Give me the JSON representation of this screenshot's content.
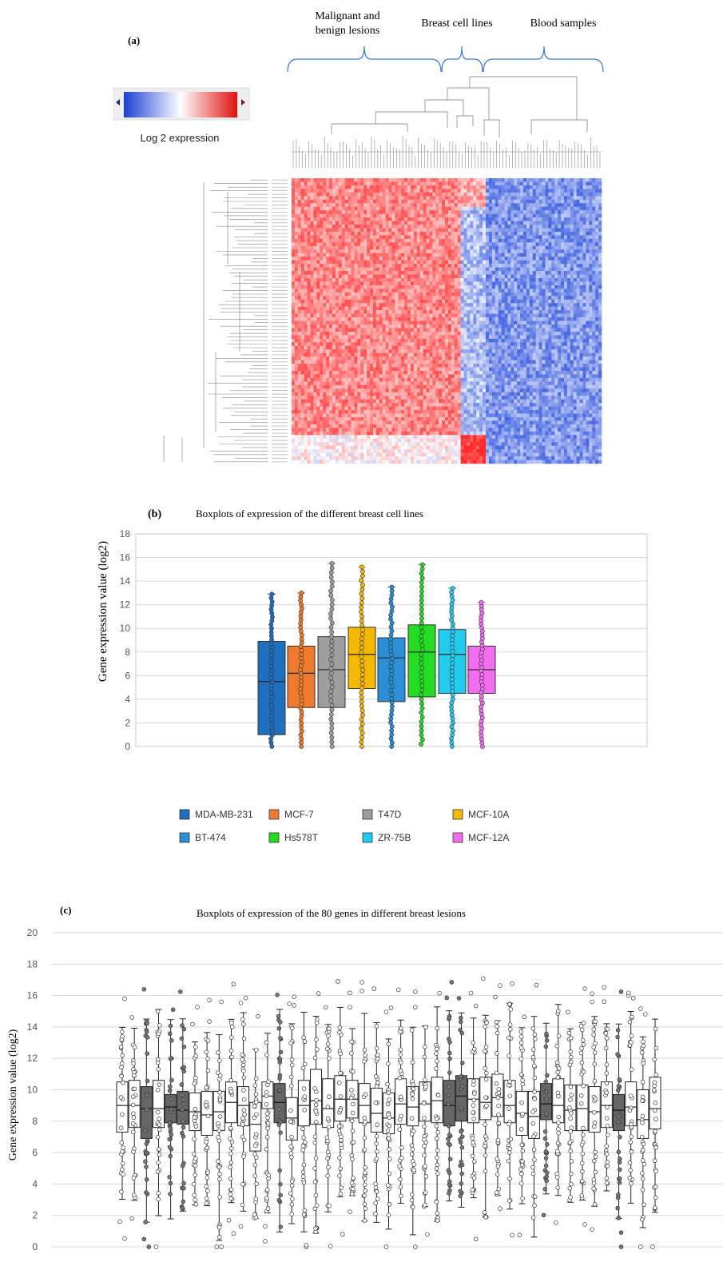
{
  "panel_a": {
    "label": "(a)",
    "groups": [
      "Malignant and benign lesions",
      "Breast cell lines",
      "Blood samples"
    ],
    "colorbar": {
      "title": "Log 2 expression",
      "colors": [
        "#1a3fd6",
        "#ffffff",
        "#e01010"
      ]
    },
    "heatmap": {
      "n_rows": 80,
      "n_cols": 99,
      "col_groups": [
        {
          "name": "Malignant and benign lesions",
          "count": 54
        },
        {
          "name": "Breast cell lines",
          "count": 8
        },
        {
          "name": "Blood samples",
          "count": 37
        }
      ]
    }
  },
  "chart_data": [
    {
      "id": "b",
      "type": "box",
      "panel_label": "(b)",
      "title": "Boxplots of expression of the different breast cell lines",
      "ylabel": "Gene expression value (log2)",
      "xlabel": "",
      "ylim": [
        0,
        18
      ],
      "yticks": [
        0,
        2,
        4,
        6,
        8,
        10,
        12,
        14,
        16,
        18
      ],
      "grid": true,
      "legend_position": "bottom",
      "series": [
        {
          "name": "MDA-MB-231",
          "color": "#1f6fbf",
          "min": 0,
          "q1": 1.0,
          "median": 5.5,
          "q3": 8.9,
          "max": 12.9
        },
        {
          "name": "MCF-7",
          "color": "#ee7a2e",
          "min": 0,
          "q1": 3.3,
          "median": 6.2,
          "q3": 8.5,
          "max": 13.0
        },
        {
          "name": "T47D",
          "color": "#9e9e9e",
          "min": 0,
          "q1": 3.3,
          "median": 6.5,
          "q3": 9.3,
          "max": 15.5
        },
        {
          "name": "MCF-10A",
          "color": "#f5b800",
          "min": 0,
          "q1": 4.9,
          "median": 7.8,
          "q3": 10.1,
          "max": 15.2
        },
        {
          "name": "BT-474",
          "color": "#2a8fd6",
          "min": 0,
          "q1": 3.8,
          "median": 7.5,
          "q3": 9.2,
          "max": 13.5
        },
        {
          "name": "Hs578T",
          "color": "#22dd22",
          "min": 0.2,
          "q1": 4.2,
          "median": 8.0,
          "q3": 10.3,
          "max": 15.4
        },
        {
          "name": "ZR-75B",
          "color": "#22ccee",
          "min": 0,
          "q1": 4.5,
          "median": 7.8,
          "q3": 9.9,
          "max": 13.4
        },
        {
          "name": "MCF-12A",
          "color": "#f26ef0",
          "min": 0,
          "q1": 4.5,
          "median": 6.5,
          "q3": 8.5,
          "max": 12.2
        }
      ]
    },
    {
      "id": "c",
      "type": "box",
      "panel_label": "(c)",
      "title": "Boxplots of expression of the 80 genes in different breast lesions",
      "ylabel": "Gene expression value (log2)",
      "xlabel": "",
      "ylim": [
        0,
        20
      ],
      "yticks": [
        0,
        2,
        4,
        6,
        8,
        10,
        12,
        14,
        16,
        18,
        20
      ],
      "grid": true,
      "boxes": [
        {
          "q1": 7.3,
          "median": 9.0,
          "q3": 10.5,
          "dark": false
        },
        {
          "q1": 7.6,
          "median": 9.0,
          "q3": 10.6,
          "dark": false
        },
        {
          "q1": 6.9,
          "median": 8.8,
          "q3": 10.2,
          "dark": true
        },
        {
          "q1": 7.6,
          "median": 8.8,
          "q3": 10.6,
          "dark": false
        },
        {
          "q1": 7.9,
          "median": 8.9,
          "q3": 9.7,
          "dark": true
        },
        {
          "q1": 7.8,
          "median": 8.7,
          "q3": 9.9,
          "dark": true
        },
        {
          "q1": 7.4,
          "median": 8.6,
          "q3": 9.8,
          "dark": false
        },
        {
          "q1": 7.1,
          "median": 8.4,
          "q3": 9.9,
          "dark": false
        },
        {
          "q1": 7.4,
          "median": 8.6,
          "q3": 9.9,
          "dark": false
        },
        {
          "q1": 7.9,
          "median": 9.2,
          "q3": 10.5,
          "dark": false
        },
        {
          "q1": 7.7,
          "median": 9.0,
          "q3": 10.2,
          "dark": false
        },
        {
          "q1": 6.1,
          "median": 7.8,
          "q3": 9.2,
          "dark": false
        },
        {
          "q1": 8.8,
          "median": 9.6,
          "q3": 10.5,
          "dark": false
        },
        {
          "q1": 7.9,
          "median": 9.2,
          "q3": 10.4,
          "dark": true
        },
        {
          "q1": 6.8,
          "median": 8.2,
          "q3": 9.5,
          "dark": false
        },
        {
          "q1": 7.7,
          "median": 9.0,
          "q3": 10.6,
          "dark": false
        },
        {
          "q1": 7.8,
          "median": 9.3,
          "q3": 11.3,
          "dark": false
        },
        {
          "q1": 7.6,
          "median": 8.8,
          "q3": 10.7,
          "dark": false
        },
        {
          "q1": 8.0,
          "median": 9.4,
          "q3": 10.9,
          "dark": false
        },
        {
          "q1": 8.2,
          "median": 9.4,
          "q3": 10.6,
          "dark": false
        },
        {
          "q1": 7.9,
          "median": 9.0,
          "q3": 10.4,
          "dark": false
        },
        {
          "q1": 7.3,
          "median": 8.5,
          "q3": 10.1,
          "dark": false
        },
        {
          "q1": 7.2,
          "median": 8.2,
          "q3": 9.8,
          "dark": false
        },
        {
          "q1": 7.8,
          "median": 9.1,
          "q3": 10.7,
          "dark": false
        },
        {
          "q1": 7.7,
          "median": 8.9,
          "q3": 10.2,
          "dark": false
        },
        {
          "q1": 8.0,
          "median": 9.1,
          "q3": 10.5,
          "dark": false
        },
        {
          "q1": 7.9,
          "median": 9.3,
          "q3": 10.8,
          "dark": false
        },
        {
          "q1": 7.7,
          "median": 9.0,
          "q3": 10.6,
          "dark": true
        },
        {
          "q1": 8.0,
          "median": 9.6,
          "q3": 10.9,
          "dark": true
        },
        {
          "q1": 7.9,
          "median": 9.4,
          "q3": 10.7,
          "dark": false
        },
        {
          "q1": 8.1,
          "median": 9.2,
          "q3": 10.8,
          "dark": false
        },
        {
          "q1": 8.3,
          "median": 9.5,
          "q3": 11.0,
          "dark": false
        },
        {
          "q1": 7.9,
          "median": 9.0,
          "q3": 10.6,
          "dark": false
        },
        {
          "q1": 7.1,
          "median": 8.5,
          "q3": 9.9,
          "dark": false
        },
        {
          "q1": 6.9,
          "median": 8.3,
          "q3": 9.9,
          "dark": false
        },
        {
          "q1": 8.1,
          "median": 9.1,
          "q3": 10.4,
          "dark": true
        },
        {
          "q1": 7.9,
          "median": 9.0,
          "q3": 10.7,
          "dark": false
        },
        {
          "q1": 7.4,
          "median": 8.7,
          "q3": 10.3,
          "dark": false
        },
        {
          "q1": 7.4,
          "median": 8.8,
          "q3": 10.3,
          "dark": false
        },
        {
          "q1": 7.3,
          "median": 8.6,
          "q3": 10.2,
          "dark": false
        },
        {
          "q1": 7.6,
          "median": 9.0,
          "q3": 10.5,
          "dark": false
        },
        {
          "q1": 7.4,
          "median": 8.7,
          "q3": 9.7,
          "dark": true
        },
        {
          "q1": 7.7,
          "median": 8.9,
          "q3": 10.5,
          "dark": false
        },
        {
          "q1": 6.9,
          "median": 8.1,
          "q3": 10.0,
          "dark": false
        },
        {
          "q1": 7.5,
          "median": 8.8,
          "q3": 10.8,
          "dark": false
        }
      ]
    }
  ]
}
